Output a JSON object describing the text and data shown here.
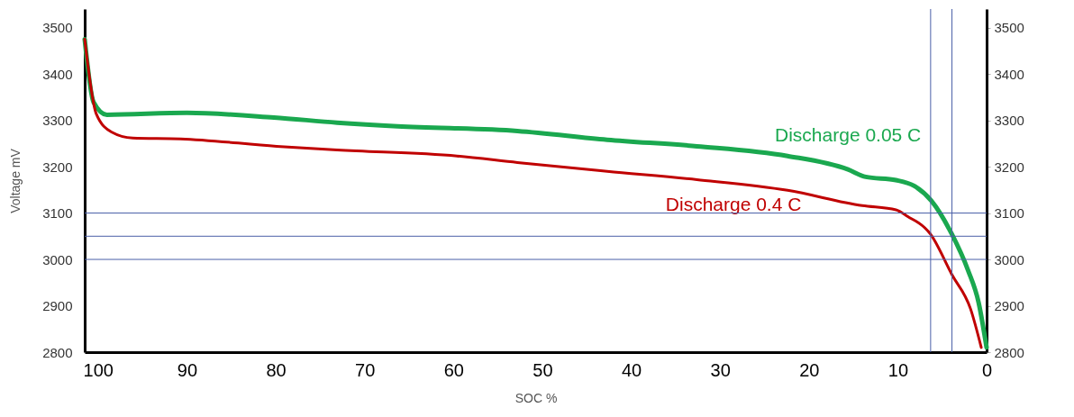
{
  "chart_data": {
    "type": "line",
    "xlabel": "SOC %",
    "ylabel": "Voltage mV",
    "xlim": [
      101.5,
      0
    ],
    "xticks": [
      100,
      90,
      80,
      70,
      60,
      50,
      40,
      30,
      20,
      10,
      0
    ],
    "ylim": [
      2800,
      3540
    ],
    "yticks": [
      2800,
      2900,
      3000,
      3100,
      3200,
      3300,
      3400,
      3500
    ],
    "y2lim": [
      2800,
      3540
    ],
    "y2ticks": [
      2800,
      2900,
      3000,
      3100,
      3200,
      3300,
      3400,
      3500
    ],
    "grid": false,
    "line_style": "solid",
    "marker": "none",
    "series": [
      {
        "name": "Discharge 0.05 C",
        "color": "#1aa84f",
        "x": [
          101.5,
          100.5,
          99,
          90,
          80.2,
          73.1,
          66.3,
          52.8,
          42.7,
          32.6,
          22.4,
          15.6,
          13.6,
          10.2,
          8.2,
          6.2,
          3.9,
          2.1,
          0.9,
          0
        ],
        "values": [
          3475,
          3339,
          3312,
          3316,
          3306,
          3295,
          3287,
          3277,
          3258,
          3244,
          3223,
          3194,
          3178,
          3171,
          3159,
          3126,
          3054,
          2977,
          2907,
          2810
        ]
      },
      {
        "name": "Discharge 0.4 C",
        "color": "#c00000",
        "x": [
          101.5,
          100.2,
          98.5,
          96.1,
          90.7,
          79.9,
          73.1,
          59.6,
          52.8,
          42.7,
          32.6,
          22.4,
          14,
          10.2,
          8.9,
          6.3,
          3.9,
          1.8,
          0.6
        ],
        "values": [
          3475,
          3314,
          3275,
          3262,
          3260,
          3244,
          3236,
          3223,
          3209,
          3190,
          3172,
          3149,
          3116,
          3107,
          3093,
          3054,
          2967,
          2893,
          2810
        ]
      }
    ],
    "ref_lines": [
      {
        "axis": "x",
        "value": 6.3,
        "color": "#4a5fa8"
      },
      {
        "axis": "x",
        "value": 3.9,
        "color": "#4a5fa8"
      },
      {
        "axis": "y",
        "value": 3100,
        "color": "#4a5fa8"
      },
      {
        "axis": "y",
        "value": 3050,
        "color": "#4a5fa8"
      },
      {
        "axis": "y",
        "value": 3000,
        "color": "#4a5fa8"
      }
    ]
  }
}
